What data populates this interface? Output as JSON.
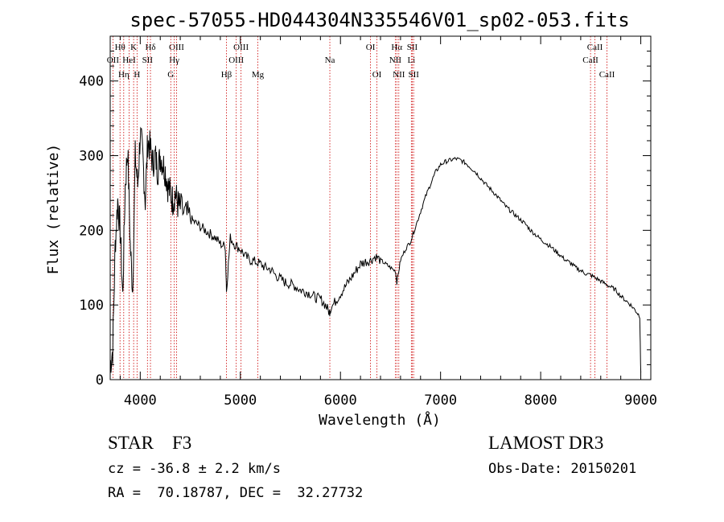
{
  "chart_data": {
    "type": "line",
    "title": "spec-57055-HD044304N335546V01_sp02-053.fits",
    "xlabel": "Wavelength (Å)",
    "ylabel": "Flux (relative)",
    "xlim": [
      3700,
      9100
    ],
    "ylim": [
      0,
      460
    ],
    "x_ticks": [
      4000,
      5000,
      6000,
      7000,
      8000,
      9000
    ],
    "y_ticks": [
      0,
      100,
      200,
      300,
      400
    ],
    "grid": false,
    "series": [
      {
        "name": "spectrum",
        "x": [
          3700,
          3725,
          3750,
          3775,
          3800,
          3825,
          3850,
          3875,
          3900,
          3925,
          3950,
          3975,
          4000,
          4025,
          4050,
          4075,
          4100,
          4125,
          4150,
          4175,
          4200,
          4225,
          4250,
          4275,
          4300,
          4325,
          4350,
          4375,
          4400,
          4450,
          4500,
          4550,
          4600,
          4650,
          4700,
          4750,
          4800,
          4850,
          4861,
          4900,
          4950,
          5000,
          5050,
          5100,
          5150,
          5200,
          5250,
          5300,
          5350,
          5400,
          5450,
          5500,
          5550,
          5600,
          5650,
          5700,
          5750,
          5800,
          5850,
          5890,
          5900,
          5950,
          6000,
          6050,
          6100,
          6150,
          6200,
          6250,
          6300,
          6350,
          6400,
          6450,
          6500,
          6550,
          6563,
          6600,
          6650,
          6700,
          6750,
          6800,
          6850,
          6900,
          6950,
          7000,
          7050,
          7100,
          7150,
          7200,
          7250,
          7300,
          7350,
          7400,
          7450,
          7500,
          7550,
          7600,
          7650,
          7700,
          7750,
          7800,
          7850,
          7900,
          7950,
          8000,
          8050,
          8100,
          8150,
          8200,
          8250,
          8300,
          8350,
          8400,
          8450,
          8500,
          8550,
          8600,
          8650,
          8700,
          8750,
          8800,
          8850,
          8900,
          8950,
          8990,
          9000
        ],
        "y": [
          20,
          40,
          180,
          240,
          200,
          110,
          260,
          310,
          180,
          120,
          300,
          260,
          330,
          300,
          240,
          320,
          310,
          290,
          300,
          280,
          300,
          290,
          280,
          260,
          250,
          240,
          250,
          235,
          230,
          220,
          215,
          210,
          205,
          200,
          195,
          190,
          182,
          178,
          120,
          190,
          180,
          175,
          165,
          160,
          158,
          155,
          150,
          148,
          140,
          135,
          130,
          128,
          125,
          120,
          118,
          115,
          110,
          108,
          100,
          90,
          95,
          105,
          115,
          125,
          135,
          145,
          155,
          158,
          160,
          165,
          160,
          155,
          150,
          145,
          130,
          160,
          175,
          185,
          205,
          225,
          245,
          262,
          278,
          288,
          292,
          294,
          296,
          294,
          290,
          284,
          278,
          270,
          262,
          255,
          248,
          240,
          232,
          226,
          220,
          214,
          208,
          200,
          194,
          188,
          183,
          178,
          172,
          166,
          160,
          156,
          150,
          146,
          142,
          140,
          136,
          132,
          128,
          124,
          120,
          112,
          106,
          100,
          92,
          85,
          10
        ]
      }
    ],
    "lines": [
      {
        "label": "OII",
        "wavelength": 3727,
        "row": 2
      },
      {
        "label": "Hθ",
        "wavelength": 3798,
        "row": 1
      },
      {
        "label": "Hη",
        "wavelength": 3835,
        "row": 3
      },
      {
        "label": "K",
        "wavelength": 3934,
        "row": 1
      },
      {
        "label": "HeI",
        "wavelength": 3889,
        "row": 2
      },
      {
        "label": "H",
        "wavelength": 3968,
        "row": 3
      },
      {
        "label": "Hδ",
        "wavelength": 4102,
        "row": 1
      },
      {
        "label": "SII",
        "wavelength": 4072,
        "row": 2
      },
      {
        "label": "OIII",
        "wavelength": 4363,
        "row": 1
      },
      {
        "label": "Hγ",
        "wavelength": 4340,
        "row": 2
      },
      {
        "label": "G",
        "wavelength": 4305,
        "row": 3
      },
      {
        "label": "Hβ",
        "wavelength": 4861,
        "row": 3
      },
      {
        "label": "OIII",
        "wavelength": 5007,
        "row": 1
      },
      {
        "label": "OIII",
        "wavelength": 4959,
        "row": 2
      },
      {
        "label": "Mg",
        "wavelength": 5175,
        "row": 3
      },
      {
        "label": "Na",
        "wavelength": 5894,
        "row": 2
      },
      {
        "label": "OI",
        "wavelength": 6300,
        "row": 1
      },
      {
        "label": "OI",
        "wavelength": 6364,
        "row": 3
      },
      {
        "label": "Hα",
        "wavelength": 6563,
        "row": 1
      },
      {
        "label": "NII",
        "wavelength": 6548,
        "row": 2
      },
      {
        "label": "NII",
        "wavelength": 6583,
        "row": 3
      },
      {
        "label": "SII",
        "wavelength": 6717,
        "row": 1
      },
      {
        "label": "Li",
        "wavelength": 6708,
        "row": 2
      },
      {
        "label": "SII",
        "wavelength": 6731,
        "row": 3
      },
      {
        "label": "CaII",
        "wavelength": 8542,
        "row": 1
      },
      {
        "label": "CaII",
        "wavelength": 8498,
        "row": 2
      },
      {
        "label": "CaII",
        "wavelength": 8662,
        "row": 3
      }
    ]
  },
  "info": {
    "object_class": "STAR    F3",
    "survey": "LAMOST DR3",
    "redshift": "cz = -36.8 ± 2.2 km/s",
    "obs_date": "Obs-Date: 20150201",
    "coordinates": "RA =  70.18787, DEC =  32.27732"
  }
}
